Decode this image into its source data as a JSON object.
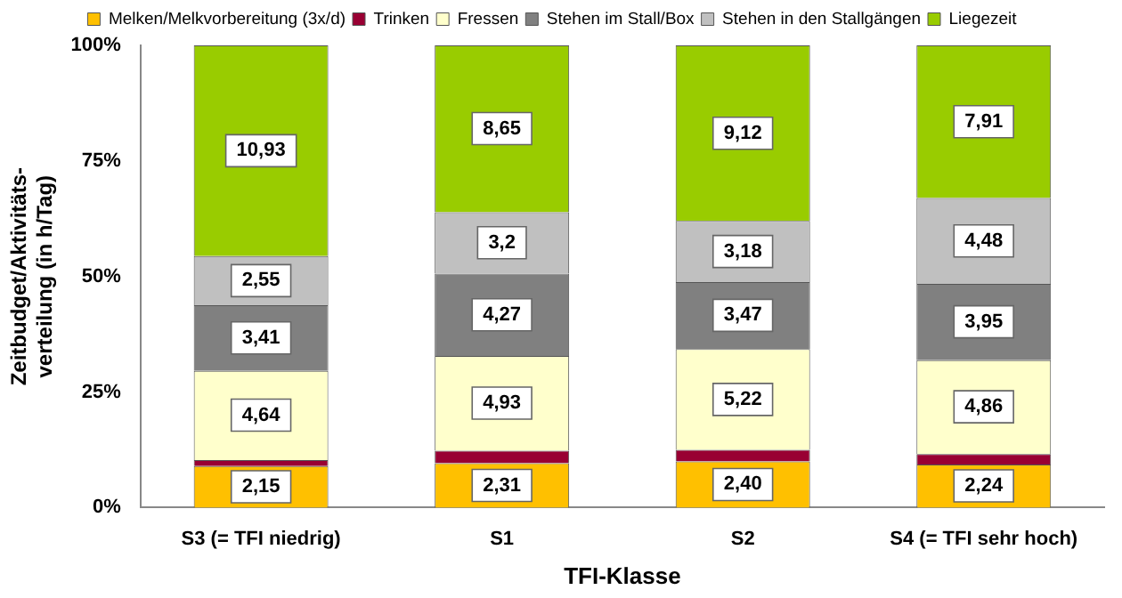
{
  "chart_data": {
    "type": "bar",
    "stacked": true,
    "xlabel": "TFI-Klasse",
    "ylabel": "Zeitbudget/Aktivitäts-\nverteilung (in h/Tag)",
    "categories": [
      "S3 (= TFI niedrig)",
      "S1",
      "S2",
      "S4 (= TFI sehr hoch)"
    ],
    "ylim": [
      0,
      100
    ],
    "yticks": [
      {
        "value": 0,
        "label": "0%"
      },
      {
        "value": 25,
        "label": "25%"
      },
      {
        "value": 50,
        "label": "50%"
      },
      {
        "value": 75,
        "label": "75%"
      },
      {
        "value": 100,
        "label": "100%"
      }
    ],
    "legend": "top",
    "grid": false,
    "series": [
      {
        "name": "Melken/Melkvorbereitung (3x/d)",
        "color": "#ffc000",
        "values": [
          9.0,
          9.6,
          10.0,
          9.3
        ]
      },
      {
        "name": "Trinken",
        "color": "#990033",
        "values": [
          1.3,
          2.7,
          2.5,
          2.3
        ]
      },
      {
        "name": "Fressen",
        "color": "#ffffcc",
        "values": [
          19.3,
          20.5,
          21.8,
          20.3
        ]
      },
      {
        "name": "Stehen im Stall/Box",
        "color": "#808080",
        "values": [
          14.2,
          17.8,
          14.5,
          16.5
        ]
      },
      {
        "name": "Stehen in den Stallgängen",
        "color": "#c0c0c0",
        "values": [
          10.6,
          13.3,
          13.2,
          18.6
        ]
      },
      {
        "name": "Liegezeit",
        "color": "#99cc00",
        "values": [
          45.6,
          36.1,
          38.0,
          33.0
        ]
      }
    ],
    "annotations": [
      {
        "text": "2,15",
        "x": "S3 (= TFI niedrig)",
        "y": 4.5
      },
      {
        "text": "4,64",
        "x": "S3 (= TFI niedrig)",
        "y": 20.0
      },
      {
        "text": "3,41",
        "x": "S3 (= TFI niedrig)",
        "y": 36.7
      },
      {
        "text": "2,55",
        "x": "S3 (= TFI niedrig)",
        "y": 49.1
      },
      {
        "text": "10,93",
        "x": "S3 (= TFI niedrig)",
        "y": 77.2
      },
      {
        "text": "2,31",
        "x": "S1",
        "y": 4.8
      },
      {
        "text": "4,93",
        "x": "S1",
        "y": 22.6
      },
      {
        "text": "4,27",
        "x": "S1",
        "y": 41.7
      },
      {
        "text": "3,2",
        "x": "S1",
        "y": 57.3
      },
      {
        "text": "8,65",
        "x": "S1",
        "y": 82.0
      },
      {
        "text": "2,40",
        "x": "S2",
        "y": 5.0
      },
      {
        "text": "5,22",
        "x": "S2",
        "y": 23.4
      },
      {
        "text": "3,47",
        "x": "S2",
        "y": 41.6
      },
      {
        "text": "3,18",
        "x": "S2",
        "y": 55.4
      },
      {
        "text": "9,12",
        "x": "S2",
        "y": 81.0
      },
      {
        "text": "2,24",
        "x": "S4 (= TFI sehr hoch)",
        "y": 4.7
      },
      {
        "text": "4,86",
        "x": "S4 (= TFI sehr hoch)",
        "y": 21.8
      },
      {
        "text": "3,95",
        "x": "S4 (= TFI sehr hoch)",
        "y": 40.2
      },
      {
        "text": "4,48",
        "x": "S4 (= TFI sehr hoch)",
        "y": 57.7
      },
      {
        "text": "7,91",
        "x": "S4 (= TFI sehr hoch)",
        "y": 83.5
      }
    ]
  }
}
